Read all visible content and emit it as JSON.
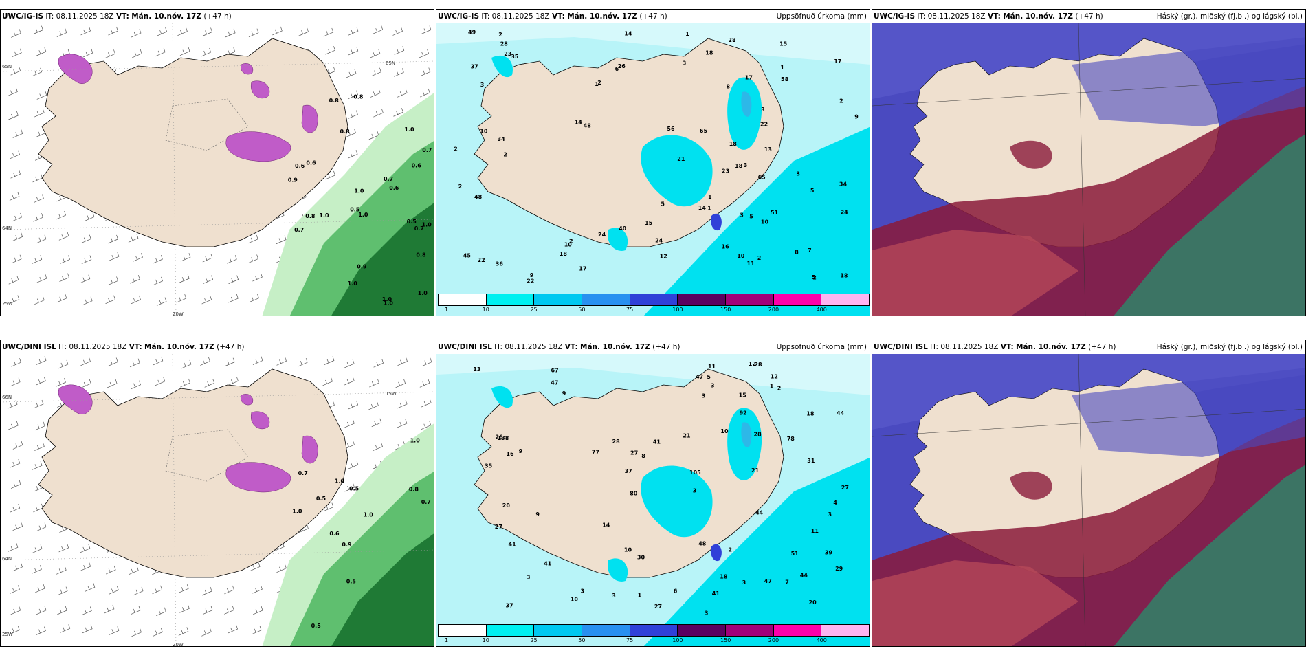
{
  "panels": [
    {
      "id": "top-left",
      "title_model": "UWC/IG-IS",
      "it_label": "IT:",
      "it_value": "08.11.2025 18Z",
      "vt_label": "VT:",
      "vt_value": "Mán. 10.nóv. 17Z",
      "lead": "(+47 h)",
      "right_title": "",
      "axis_labels": [
        "65N",
        "64N",
        "25W",
        "20W",
        "65N"
      ],
      "value_labels": [
        "0.8",
        "0.5",
        "1.0",
        "0.6",
        "0.8",
        "1.0",
        "0.7",
        "0.8",
        "1.0",
        "1.0",
        "0.8",
        "0.7",
        "0.6",
        "1.0",
        "0.9",
        "0.6",
        "0.7",
        "0.8",
        "1.0",
        "0.9",
        "0.5",
        "1.0",
        "0.7",
        "1.0",
        "0.6",
        "1.0"
      ]
    },
    {
      "id": "top-middle",
      "title_model": "UWC/IG-IS",
      "it_label": "IT:",
      "it_value": "08.11.2025 18Z",
      "vt_label": "VT:",
      "vt_value": "Mán. 10.nóv. 17Z",
      "lead": "(+47 h)",
      "right_title": "Uppsöfnuð úrkoma (mm)",
      "colorbar_ticks": [
        "1",
        "10",
        "25",
        "50",
        "75",
        "100",
        "150",
        "200",
        "400"
      ],
      "value_labels": [
        "3",
        "3",
        "3",
        "2",
        "2",
        "2",
        "2",
        "2",
        "3",
        "23",
        "10",
        "5",
        "8",
        "22",
        "17",
        "9",
        "14",
        "15",
        "40",
        "65",
        "16",
        "18",
        "2",
        "8",
        "5",
        "1",
        "18",
        "65",
        "17",
        "12",
        "13",
        "24",
        "23",
        "18",
        "7",
        "15",
        "11",
        "14",
        "10",
        "9",
        "5",
        "6",
        "14",
        "49",
        "22",
        "22",
        "26",
        "24",
        "56",
        "48",
        "48",
        "10",
        "28",
        "1",
        "3",
        "2",
        "21",
        "51",
        "28",
        "18",
        "1",
        "2",
        "1",
        "1",
        "10",
        "3",
        "18",
        "34",
        "34",
        "36",
        "45",
        "58",
        "2",
        "17",
        "24",
        "37",
        "35",
        "5"
      ]
    },
    {
      "id": "top-right",
      "title_model": "UWC/IG-IS",
      "it_label": "IT:",
      "it_value": "08.11.2025 18Z",
      "vt_label": "VT:",
      "vt_value": "Mán. 10.nóv. 17Z",
      "lead": "(+47 h)",
      "right_title": "Háský (gr.), miðský (fj.bl.) og lágský (bl.)"
    },
    {
      "id": "bottom-left",
      "title_model": "UWC/DINI ISL",
      "it_label": "IT:",
      "it_value": "08.11.2025 18Z",
      "vt_label": "VT:",
      "vt_value": "Mán. 10.nóv. 17Z",
      "lead": "(+47 h)",
      "right_title": "",
      "axis_labels": [
        "66N",
        "64N",
        "25W",
        "20W",
        "15W"
      ],
      "value_labels": [
        "0.7",
        "0.9",
        "1.0",
        "0.8",
        "1.0",
        "0.5",
        "0.5",
        "1.0",
        "0.7",
        "0.6",
        "0.5",
        "0.5",
        "1.0"
      ]
    },
    {
      "id": "bottom-middle",
      "title_model": "UWC/DINI ISL",
      "it_label": "IT:",
      "it_value": "08.11.2025 18Z",
      "vt_label": "VT:",
      "vt_value": "Mán. 10.nóv. 17Z",
      "lead": "(+47 h)",
      "right_title": "Uppsöfnuð úrkoma (mm)",
      "colorbar_ticks": [
        "1",
        "10",
        "25",
        "50",
        "75",
        "100",
        "150",
        "200",
        "400"
      ],
      "value_labels": [
        "3",
        "3",
        "3",
        "3",
        "3",
        "3",
        "3",
        "3",
        "37",
        "39",
        "11",
        "9",
        "6",
        "10",
        "9",
        "48",
        "27",
        "18",
        "80",
        "105",
        "15",
        "14",
        "11",
        "28",
        "21",
        "12",
        "27",
        "18",
        "30",
        "20",
        "138",
        "28",
        "16",
        "12",
        "20",
        "8",
        "41",
        "67",
        "1",
        "47",
        "7",
        "27",
        "44",
        "29",
        "28",
        "41",
        "44",
        "92",
        "77",
        "9",
        "10",
        "5",
        "3",
        "4",
        "2",
        "21",
        "31",
        "51",
        "10",
        "2",
        "37",
        "78",
        "13",
        "1",
        "26",
        "27",
        "47",
        "47",
        "44",
        "41",
        "41",
        "35"
      ]
    },
    {
      "id": "bottom-right",
      "title_model": "UWC/DINI ISL",
      "it_label": "IT:",
      "it_value": "08.11.2025 18Z",
      "vt_label": "VT:",
      "vt_value": "Mán. 10.nóv. 17Z",
      "lead": "(+47 h)",
      "right_title": "Háský (gr.), miðský (fj.bl.) og lágský (bl.)"
    }
  ],
  "colors": {
    "land": "#efe0cf",
    "ocean_light": "#b8f4f8",
    "precip_cyan": "#00e1f0",
    "precip_blue": "#2db8e8",
    "green_light": "#c6efc6",
    "green_mid": "#5fbf6f",
    "green_dark": "#1f7a35",
    "snow_magenta": "#c05cc8",
    "cloud_high": "#2a8a6a",
    "cloud_mid": "#8a1a3a",
    "cloud_low": "#4a4ac0"
  },
  "colorbar_colors": [
    "#ffffff",
    "#00f0f0",
    "#00c8f0",
    "#2890f0",
    "#3040d8",
    "#5a0060",
    "#a0007a",
    "#ff00aa",
    "#ffb4f0"
  ]
}
